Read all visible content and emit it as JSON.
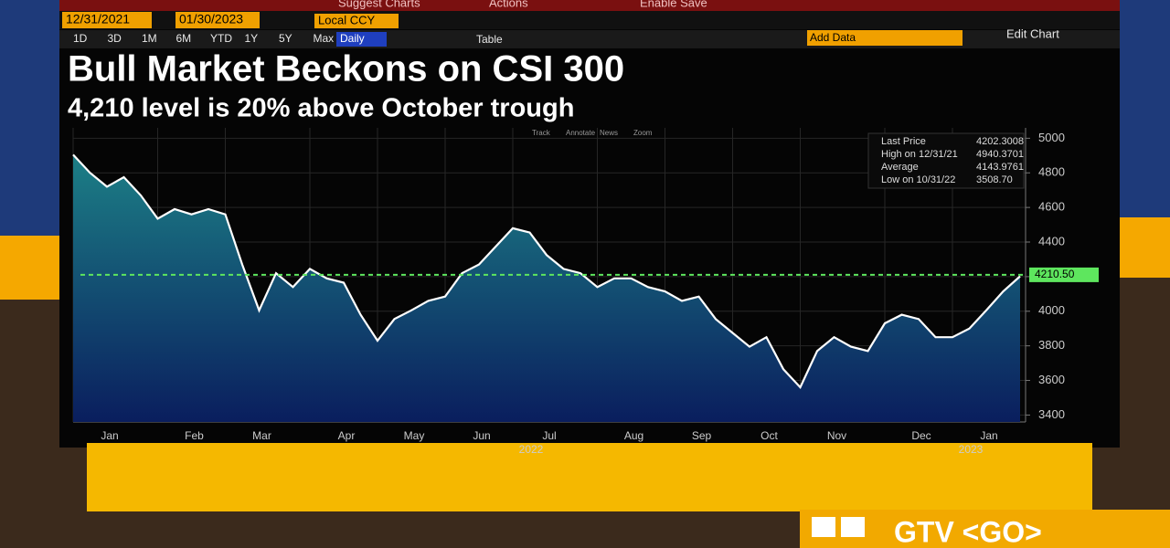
{
  "toolbar": {
    "start_date": "12/31/2021",
    "end_date": "01/30/2023",
    "currency": "Local CCY",
    "menu": [
      "Suggest Charts",
      "Actions",
      "Enable Save"
    ],
    "ranges": [
      "1D",
      "3D",
      "1M",
      "6M",
      "YTD",
      "1Y",
      "5Y",
      "Max"
    ],
    "frequency": "Daily",
    "table": "Table",
    "add_data": "Add Data",
    "edit_chart": "Edit Chart",
    "tools": [
      "Track",
      "Annotate",
      "News",
      "Zoom"
    ]
  },
  "footer": {
    "function": "GTV <GO>"
  },
  "chart_data": {
    "type": "line",
    "title": "Bull Market Beckons on CSI 300",
    "subtitle": "4,210 level is 20% above October trough",
    "categories": [
      "Jan",
      null,
      null,
      null,
      null,
      "Feb",
      null,
      null,
      null,
      "Mar",
      null,
      null,
      null,
      null,
      "Apr",
      null,
      null,
      null,
      "May",
      null,
      null,
      null,
      "Jun",
      null,
      null,
      null,
      "Jul",
      null,
      null,
      null,
      null,
      "Aug",
      null,
      null,
      null,
      "Sep",
      null,
      null,
      null,
      "Oct",
      null,
      null,
      null,
      "Nov",
      null,
      null,
      null,
      null,
      "Dec",
      null,
      null,
      null,
      "Jan",
      null,
      null,
      null,
      null
    ],
    "year_labels": [
      "2022",
      "2023"
    ],
    "series": [
      {
        "name": "Last Price",
        "color": "#ffffff",
        "values": [
          4905,
          4800,
          4720,
          4775,
          4670,
          4535,
          4590,
          4560,
          4590,
          4560,
          4270,
          4005,
          4220,
          4140,
          4245,
          4190,
          4165,
          3980,
          3830,
          3955,
          4005,
          4060,
          4085,
          4220,
          4270,
          4375,
          4480,
          4455,
          4325,
          4245,
          4220,
          4140,
          4190,
          4190,
          4140,
          4115,
          4060,
          4085,
          3955,
          3875,
          3795,
          3850,
          3665,
          3560,
          3770,
          3850,
          3795,
          3770,
          3930,
          3980,
          3955,
          3850,
          3850,
          3900,
          4005,
          4115,
          4202
        ]
      }
    ],
    "stats": [
      {
        "name": "Last Price",
        "value": 4202.3008
      },
      {
        "name": "High on 12/31/21",
        "value": 4940.3701
      },
      {
        "name": "Average",
        "value": 4143.9761
      },
      {
        "name": "Low on 10/31/22",
        "value": 3508.7,
        "label": "3508.70"
      }
    ],
    "reference_line": {
      "value": 4210.5,
      "label": "4210.50",
      "color": "#5ee65e"
    },
    "ylim": [
      3360,
      5060
    ],
    "yticks": [
      3400,
      3600,
      3800,
      4000,
      4200,
      4400,
      4600,
      4800,
      5000
    ],
    "grid": true
  }
}
